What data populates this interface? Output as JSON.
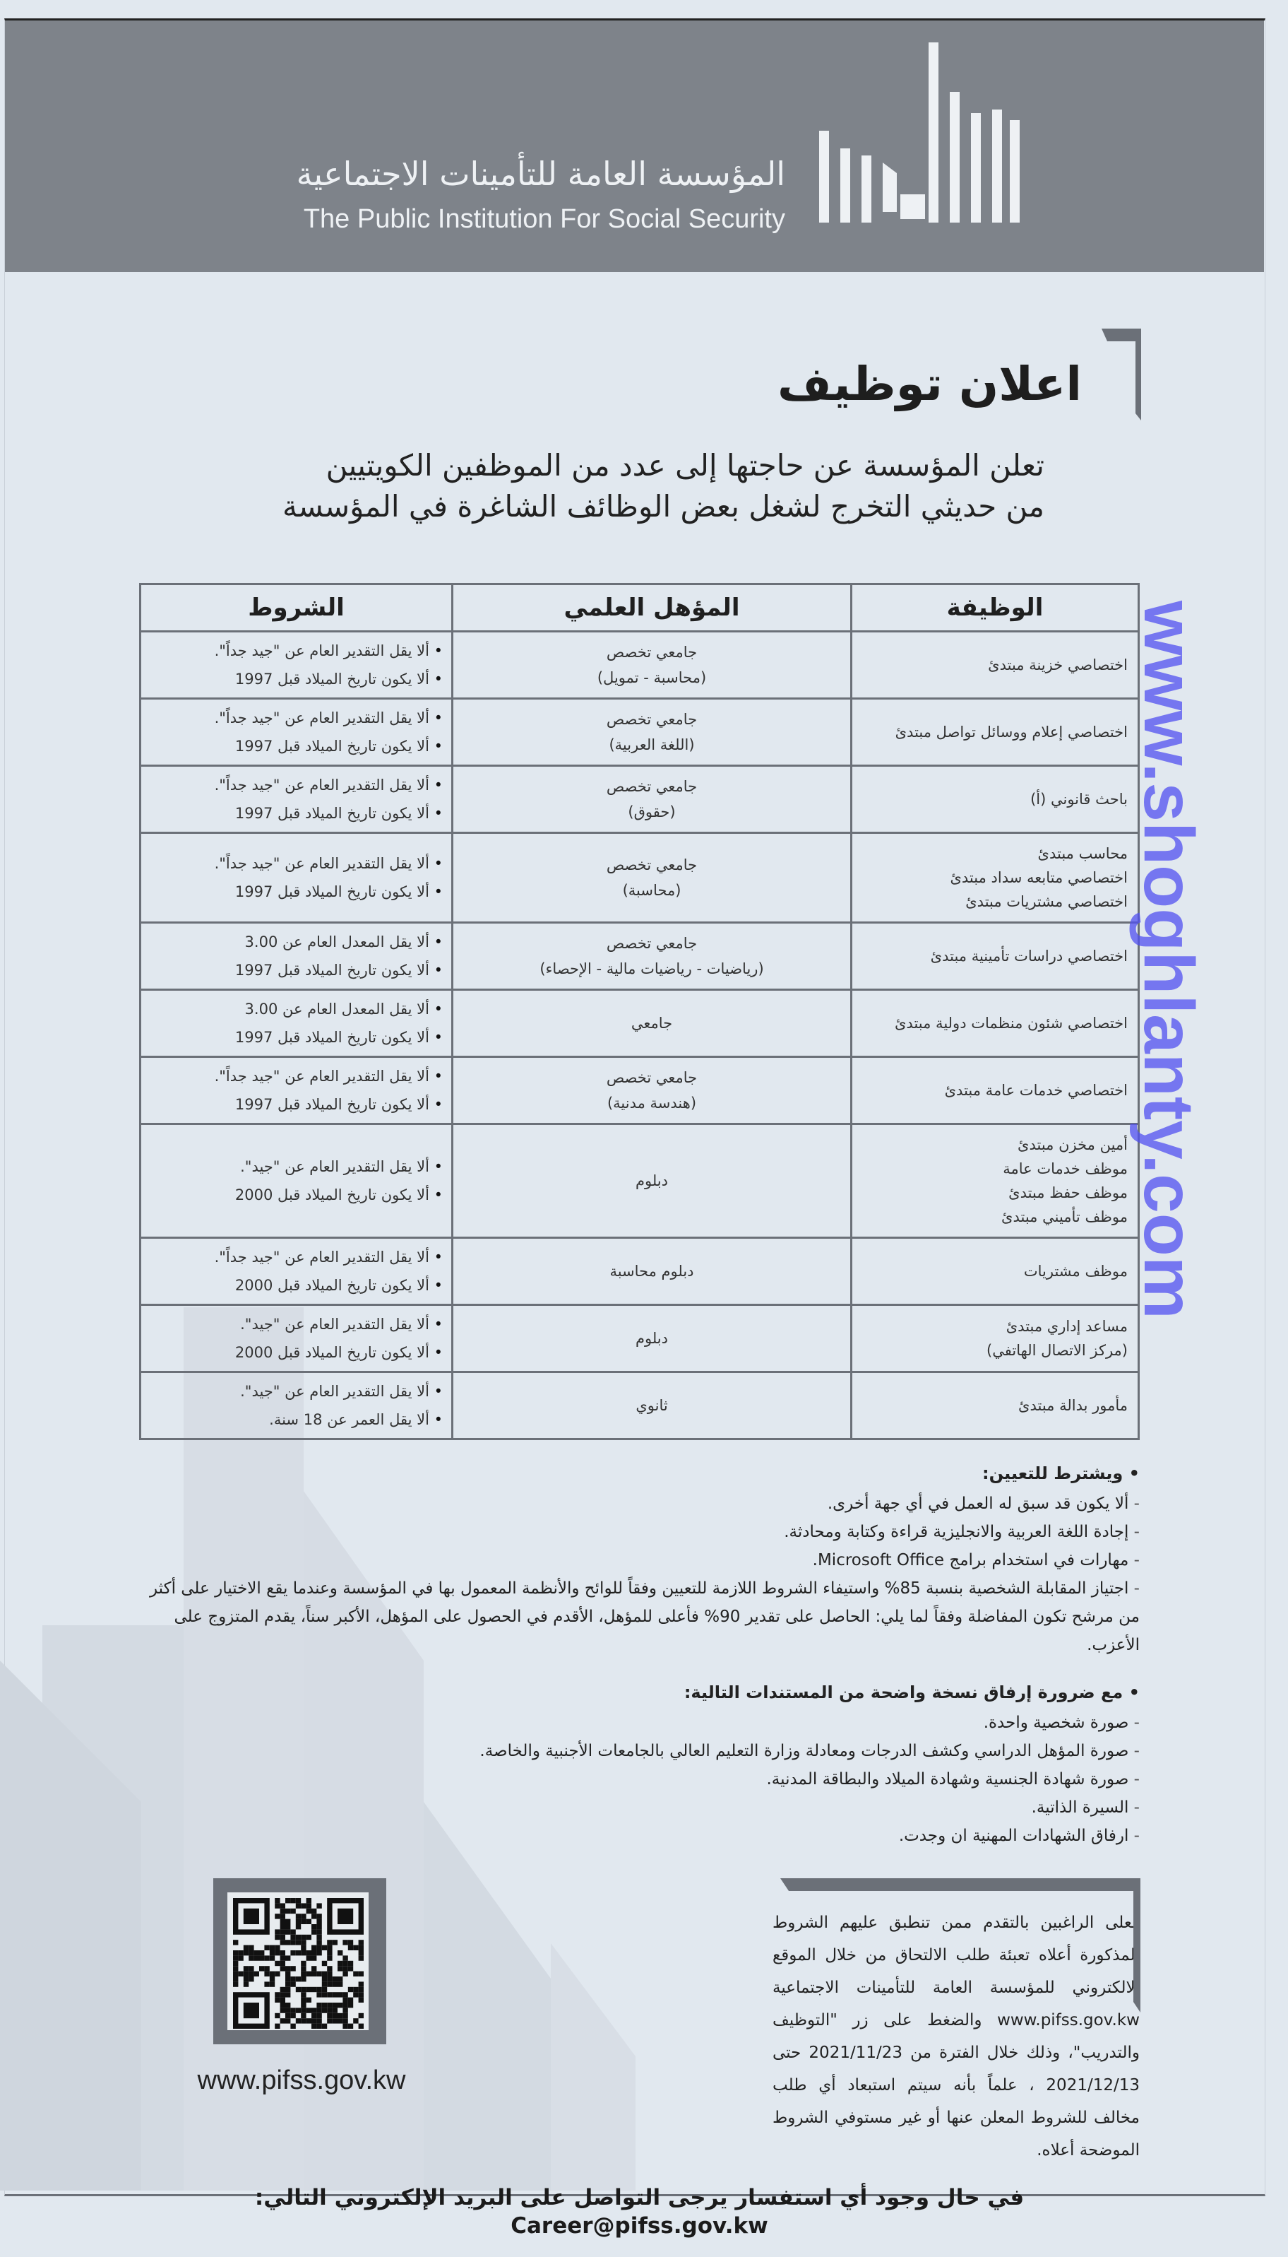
{
  "header": {
    "org_name_ar": "المؤسسة العامة للتأمينات الاجتماعية",
    "org_name_en": "The Public Institution For Social Security",
    "header_color": "#7e838a"
  },
  "title": "اعلان توظيف",
  "intro": [
    "تعلن المؤسسة عن حاجتها إلى عدد من الموظفين الكويتيين",
    "من حديثي التخرج لشغل بعض الوظائف الشاغرة في المؤسسة"
  ],
  "table": {
    "headers": [
      "الوظيفة",
      "المؤهل العلمي",
      "الشروط"
    ],
    "rows": [
      {
        "job": [
          "اختصاصي خزينة مبتدئ"
        ],
        "qual": [
          "جامعي تخصص",
          "(محاسبة - تمويل)"
        ],
        "cond": [
          "ألا يقل التقدير العام عن \"جيد جداً\".",
          "ألا يكون تاريخ الميلاد قبل 1997"
        ]
      },
      {
        "job": [
          "اختصاصي إعلام ووسائل تواصل مبتدئ"
        ],
        "qual": [
          "جامعي تخصص",
          "(اللغة العربية)"
        ],
        "cond": [
          "ألا يقل التقدير العام عن \"جيد جداً\".",
          "ألا يكون تاريخ الميلاد قبل 1997"
        ]
      },
      {
        "job": [
          "باحث قانوني (أ)"
        ],
        "qual": [
          "جامعي تخصص",
          "(حقوق)"
        ],
        "cond": [
          "ألا يقل التقدير العام عن \"جيد جداً\".",
          "ألا يكون تاريخ الميلاد قبل 1997"
        ]
      },
      {
        "job": [
          "محاسب مبتدئ",
          "اختصاصي متابعه سداد مبتدئ",
          "اختصاصي مشتريات مبتدئ"
        ],
        "qual": [
          "جامعي تخصص",
          "(محاسبة)"
        ],
        "cond": [
          "ألا يقل التقدير العام عن \"جيد جداً\".",
          "ألا يكون تاريخ الميلاد قبل 1997"
        ]
      },
      {
        "job": [
          "اختصاصي دراسات تأمينية مبتدئ"
        ],
        "qual": [
          "جامعي تخصص",
          "(رياضيات - رياضيات مالية - الإحصاء)"
        ],
        "cond": [
          "ألا يقل المعدل العام عن 3.00",
          "ألا يكون تاريخ الميلاد قبل 1997"
        ]
      },
      {
        "job": [
          "اختصاصي شئون منظمات دولية مبتدئ"
        ],
        "qual": [
          "جامعي"
        ],
        "cond": [
          "ألا يقل المعدل العام عن 3.00",
          "ألا يكون تاريخ الميلاد قبل 1997"
        ]
      },
      {
        "job": [
          "اختصاصي خدمات عامة مبتدئ"
        ],
        "qual": [
          "جامعي تخصص",
          "(هندسة مدنية)"
        ],
        "cond": [
          "ألا يقل التقدير العام عن \"جيد جداً\".",
          "ألا يكون تاريخ الميلاد قبل 1997"
        ]
      },
      {
        "job": [
          "أمين مخزن مبتدئ",
          "موظف خدمات عامة",
          "موظف حفظ مبتدئ",
          "موظف تأميني مبتدئ"
        ],
        "qual": [
          "دبلوم"
        ],
        "cond": [
          "ألا يقل التقدير العام عن \"جيد\".",
          "ألا يكون تاريخ الميلاد قبل 2000"
        ]
      },
      {
        "job": [
          "موظف مشتريات"
        ],
        "qual": [
          "دبلوم محاسبة"
        ],
        "cond": [
          "ألا يقل التقدير العام عن \"جيد جداً\".",
          "ألا يكون تاريخ الميلاد قبل 2000"
        ]
      },
      {
        "job": [
          "مساعد إداري مبتدئ",
          "(مركز الاتصال الهاتفي)"
        ],
        "qual": [
          "دبلوم"
        ],
        "cond": [
          "ألا يقل التقدير العام عن \"جيد\".",
          "ألا يكون تاريخ الميلاد قبل 2000"
        ]
      },
      {
        "job": [
          "مأمور بدالة مبتدئ"
        ],
        "qual": [
          "ثانوي"
        ],
        "cond": [
          "ألا يقل التقدير العام عن \"جيد\".",
          "ألا يقل العمر عن 18 سنة."
        ]
      }
    ]
  },
  "requirements": {
    "heading": "ويشترط للتعيين:",
    "items": [
      "ألا يكون قد سبق له العمل في أي جهة أخرى.",
      "إجادة اللغة العربية والانجليزية قراءة وكتابة ومحادثة.",
      "مهارات في استخدام برامج Microsoft Office.",
      "اجتياز المقابلة الشخصية بنسبة 85% واستيفاء الشروط اللازمة للتعيين وفقاً للوائح والأنظمة المعمول بها في المؤسسة وعندما يقع الاختيار على أكثر من مرشح تكون المفاضلة وفقاً لما يلي: الحاصل على تقدير 90% فأعلى للمؤهل، الأقدم في الحصول على المؤهل، الأكبر سناً، يقدم المتزوج على الأعزب."
    ]
  },
  "documents": {
    "heading": "مع ضرورة إرفاق نسخة واضحة من المستندات التالية:",
    "items": [
      "صورة شخصية واحدة.",
      "صورة المؤهل الدراسي وكشف الدرجات ومعادلة وزارة التعليم العالي بالجامعات الأجنبية والخاصة.",
      "صورة شهادة الجنسية وشهادة الميلاد والبطاقة المدنية.",
      "السيرة الذاتية.",
      "ارفاق الشهادات المهنية ان وجدت."
    ]
  },
  "apply_text": "فعلى الراغبين بالتقدم ممن تنطبق عليهم الشروط المذكورة أعلاه تعبئة طلب الالتحاق من خلال الموقع الالكتروني للمؤسسة العامة للتأمينات الاجتماعية www.pifss.gov.kw والضغط على زر \"التوظيف والتدريب\"، وذلك خلال الفترة من 2021/11/23 حتى 2021/12/13 ، علماً بأنه سيتم استبعاد أي طلب مخالف للشروط المعلن عنها أو غير مستوفي الشروط الموضحة أعلاه.",
  "qr_url": "www.pifss.gov.kw",
  "contact": "في حال وجود أي استفسار يرجى التواصل على البريد الإلكتروني التالي: Career@pifss.gov.kw",
  "watermark": "www.shoghlanty.com"
}
